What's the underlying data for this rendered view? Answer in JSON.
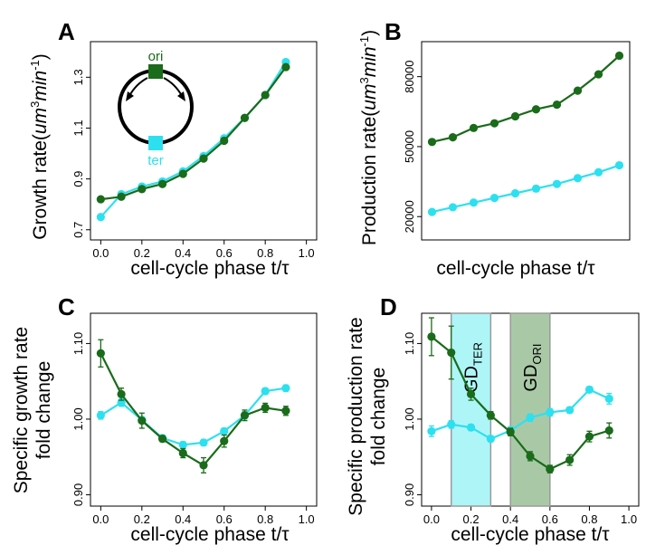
{
  "colors": {
    "ori": "#1a6b1a",
    "ter": "#2de0f0",
    "gd_ter_band": "#aef5f7",
    "gd_ori_band": "#a9c9a6"
  },
  "chart_data": [
    {
      "panel": "A",
      "type": "line",
      "xlabel": "cell-cycle phase t/τ",
      "ylabel": "Growth rate (um3min-1)",
      "ylabel_parts": {
        "main": "Growth rate",
        "open": "(",
        "unit1": "um",
        "exp1": "3",
        "unit2": "min",
        "exp2": "-1",
        "close": ")"
      },
      "xlim": [
        -0.05,
        1.05
      ],
      "ylim": [
        0.66,
        1.44
      ],
      "xticks": [
        "0.0",
        "0.2",
        "0.4",
        "0.6",
        "0.8",
        "1.0"
      ],
      "xtick_values": [
        0,
        0.2,
        0.4,
        0.6,
        0.8,
        1.0
      ],
      "yticks": [
        "0.7",
        "0.9",
        "1.1",
        "1.3"
      ],
      "ytick_values": [
        0.7,
        0.9,
        1.1,
        1.3
      ],
      "inset": {
        "ori_label": "ori",
        "ter_label": "ter"
      },
      "series": [
        {
          "key": "ter",
          "x": [
            0,
            0.1,
            0.2,
            0.3,
            0.4,
            0.5,
            0.6,
            0.7,
            0.8,
            0.9
          ],
          "y": [
            0.75,
            0.84,
            0.87,
            0.89,
            0.93,
            0.99,
            1.06,
            1.14,
            1.23,
            1.36
          ]
        },
        {
          "key": "ori",
          "x": [
            0,
            0.1,
            0.2,
            0.3,
            0.4,
            0.5,
            0.6,
            0.7,
            0.8,
            0.9
          ],
          "y": [
            0.82,
            0.83,
            0.86,
            0.88,
            0.92,
            0.98,
            1.05,
            1.14,
            1.23,
            1.34
          ]
        }
      ]
    },
    {
      "panel": "B",
      "type": "line",
      "xlabel": "cell-cycle phase t/τ",
      "ylabel": "Production rate (um3min-1)",
      "ylabel_parts": {
        "main": "Production rate",
        "open": "(",
        "unit1": "um",
        "exp1": "3",
        "unit2": "min",
        "exp2": "-1",
        "close": ")"
      },
      "xlim": [
        0,
        1.0
      ],
      "ylim": [
        10000,
        95000
      ],
      "xticks": [],
      "xtick_values": [],
      "yticks": [
        "20000",
        "50000",
        "80000"
      ],
      "ytick_values": [
        20000,
        50000,
        80000
      ],
      "series": [
        {
          "key": "ori",
          "x": [
            0.05,
            0.15,
            0.25,
            0.35,
            0.45,
            0.55,
            0.65,
            0.75,
            0.85,
            0.95
          ],
          "y": [
            52000,
            54000,
            58000,
            60000,
            63000,
            66000,
            68000,
            74000,
            81000,
            89000
          ]
        },
        {
          "key": "ter",
          "x": [
            0.05,
            0.15,
            0.25,
            0.35,
            0.45,
            0.55,
            0.65,
            0.75,
            0.85,
            0.95
          ],
          "y": [
            22000,
            24000,
            26000,
            28000,
            30000,
            32000,
            34000,
            36500,
            39000,
            42000
          ]
        }
      ]
    },
    {
      "panel": "C",
      "type": "line",
      "xlabel": "cell-cycle phase t/τ",
      "ylabel": "Specific growth rate fold change",
      "ylabel_lines": [
        "Specific growth rate",
        "fold change"
      ],
      "xlim": [
        -0.05,
        1.05
      ],
      "ylim": [
        0.885,
        1.14
      ],
      "xticks": [
        "0.0",
        "0.2",
        "0.4",
        "0.6",
        "0.8",
        "1.0"
      ],
      "xtick_values": [
        0,
        0.2,
        0.4,
        0.6,
        0.8,
        1.0
      ],
      "yticks": [
        "0.90",
        "1.00",
        "1.10"
      ],
      "ytick_values": [
        0.9,
        1.0,
        1.1
      ],
      "series": [
        {
          "key": "ter",
          "x": [
            0,
            0.1,
            0.2,
            0.3,
            0.4,
            0.5,
            0.6,
            0.7,
            0.8,
            0.9
          ],
          "y": [
            1.005,
            1.022,
            0.999,
            0.975,
            0.966,
            0.969,
            0.984,
            1.005,
            1.037,
            1.041
          ],
          "err": [
            0.005,
            0.005,
            0.004,
            0.004,
            0.004,
            0.004,
            0.004,
            0.005,
            0.004,
            0.004
          ]
        },
        {
          "key": "ori",
          "x": [
            0,
            0.1,
            0.2,
            0.3,
            0.4,
            0.5,
            0.6,
            0.7,
            0.8,
            0.9
          ],
          "y": [
            1.087,
            1.033,
            0.998,
            0.974,
            0.955,
            0.939,
            0.971,
            1.005,
            1.015,
            1.011
          ],
          "err": [
            0.018,
            0.008,
            0.01,
            0.004,
            0.006,
            0.01,
            0.008,
            0.007,
            0.006,
            0.006
          ]
        }
      ]
    },
    {
      "panel": "D",
      "type": "line",
      "xlabel": "cell-cycle phase t/τ",
      "ylabel": "Specific production rate fold change",
      "ylabel_lines": [
        "Specific production rate",
        "fold change"
      ],
      "xlim": [
        -0.05,
        1.05
      ],
      "ylim": [
        0.885,
        1.14
      ],
      "xticks": [
        "0.0",
        "0.2",
        "0.4",
        "0.6",
        "0.8",
        "1.0"
      ],
      "xtick_values": [
        0,
        0.2,
        0.4,
        0.6,
        0.8,
        1.0
      ],
      "yticks": [
        "0.90",
        "1.00",
        "1.10"
      ],
      "ytick_values": [
        0.9,
        1.0,
        1.1
      ],
      "bands": [
        {
          "key": "ter",
          "label": "GD",
          "sub": "TER",
          "x0": 0.1,
          "x1": 0.3
        },
        {
          "key": "ori",
          "label": "GD",
          "sub": "ORI",
          "x0": 0.4,
          "x1": 0.6
        }
      ],
      "series": [
        {
          "key": "ter",
          "x": [
            0,
            0.1,
            0.2,
            0.3,
            0.4,
            0.5,
            0.6,
            0.7,
            0.8,
            0.9
          ],
          "y": [
            0.984,
            0.993,
            0.989,
            0.974,
            0.985,
            1.002,
            1.009,
            1.012,
            1.039,
            1.027
          ],
          "err": [
            0.007,
            0.005,
            0.004,
            0.004,
            0.005,
            0.005,
            0.005,
            0.004,
            0.004,
            0.007
          ]
        },
        {
          "key": "ori",
          "x": [
            0,
            0.1,
            0.2,
            0.3,
            0.4,
            0.5,
            0.6,
            0.7,
            0.8,
            0.9
          ],
          "y": [
            1.109,
            1.088,
            1.033,
            1.005,
            0.983,
            0.951,
            0.934,
            0.946,
            0.977,
            0.985
          ],
          "err": [
            0.025,
            0.035,
            0.008,
            0.005,
            0.005,
            0.006,
            0.005,
            0.007,
            0.007,
            0.01
          ]
        }
      ]
    }
  ]
}
